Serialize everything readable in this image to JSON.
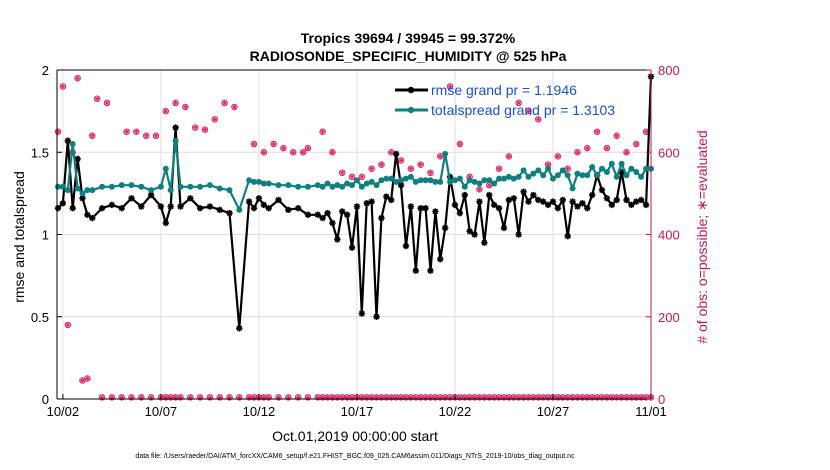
{
  "chart_data": {
    "type": "line",
    "title_line1": "Tropics 39694 / 39945 = 99.372%",
    "title_line2": "RADIOSONDE_SPECIFIC_HUMIDITY @ 525 hPa",
    "xlabel": "Oct.01,2019 00:00:00 start",
    "ylabel_left": "rmse and totalspread",
    "ylabel_right": "# of obs: o=possible; ∗=evaluated",
    "footer": "data file: /Users/raeder/DAI/ATM_forcXX/CAM6_setup/f.e21.FHIST_BGC.f09_025.CAM6assim.011/Diags_NTrS_2019-10/obs_diag_output.nc",
    "xlim": [
      1.7,
      32
    ],
    "ylim_left": [
      0,
      2
    ],
    "ylim_right": [
      0,
      800
    ],
    "x_ticks": [
      2,
      7,
      12,
      17,
      22,
      27,
      32
    ],
    "x_tick_labels": [
      "10/02",
      "10/07",
      "10/12",
      "10/17",
      "10/22",
      "10/27",
      "11/01"
    ],
    "y_left_ticks": [
      "0",
      "0.5",
      "1",
      "1.5",
      "2"
    ],
    "y_right_ticks": [
      "0",
      "200",
      "400",
      "600",
      "800"
    ],
    "colors": {
      "rmse": "#000000",
      "spread": "#0f8080",
      "obs": "#d81b60",
      "legend_text": "#1a4fd6",
      "right_axis": "#c2185b"
    },
    "series": [
      {
        "name": "rmse grand pr = 1.1946",
        "key": "rmse",
        "x": [
          1.75,
          2.0,
          2.25,
          2.5,
          2.75,
          3.0,
          3.25,
          3.5,
          4.0,
          4.5,
          5.0,
          5.5,
          6.0,
          6.5,
          7.0,
          7.25,
          7.5,
          7.75,
          8.0,
          8.5,
          9.0,
          9.5,
          10.0,
          10.5,
          11.0,
          11.5,
          11.75,
          12.0,
          12.25,
          12.5,
          13.0,
          13.5,
          14.0,
          14.5,
          15.0,
          15.25,
          15.5,
          15.75,
          16.0,
          16.25,
          16.5,
          16.75,
          17.0,
          17.25,
          17.5,
          17.75,
          18.0,
          18.25,
          18.5,
          18.75,
          19.0,
          19.25,
          19.5,
          19.75,
          20.0,
          20.25,
          20.5,
          20.75,
          21.0,
          21.25,
          21.5,
          21.75,
          22.0,
          22.25,
          22.5,
          22.75,
          23.0,
          23.25,
          23.5,
          23.75,
          24.0,
          24.25,
          24.5,
          24.75,
          25.0,
          25.25,
          25.5,
          25.75,
          26.0,
          26.25,
          26.5,
          26.75,
          27.0,
          27.25,
          27.5,
          27.75,
          28.0,
          28.25,
          28.5,
          28.75,
          29.0,
          29.25,
          29.5,
          29.75,
          30.0,
          30.25,
          30.5,
          30.75,
          31.0,
          31.25,
          31.5,
          31.75,
          32.0
        ],
        "y": [
          1.16,
          1.19,
          1.57,
          1.16,
          1.46,
          1.22,
          1.12,
          1.1,
          1.16,
          1.18,
          1.16,
          1.22,
          1.17,
          1.24,
          1.17,
          1.07,
          1.17,
          1.65,
          1.17,
          1.22,
          1.16,
          1.17,
          1.15,
          1.13,
          0.43,
          1.2,
          1.16,
          1.22,
          1.18,
          1.16,
          1.21,
          1.15,
          1.16,
          1.12,
          1.12,
          1.1,
          1.13,
          1.07,
          0.97,
          1.14,
          1.12,
          0.92,
          1.17,
          0.52,
          1.19,
          1.2,
          0.5,
          1.1,
          1.23,
          1.21,
          1.49,
          1.3,
          0.93,
          1.17,
          0.78,
          1.16,
          1.16,
          0.78,
          1.14,
          0.85,
          1.04,
          1.35,
          1.18,
          1.13,
          1.24,
          1.02,
          1.0,
          1.2,
          0.95,
          1.24,
          1.18,
          1.16,
          1.04,
          1.21,
          1.22,
          1.0,
          1.26,
          1.2,
          1.24,
          1.21,
          1.2,
          1.18,
          1.2,
          1.16,
          1.21,
          0.99,
          1.2,
          1.17,
          1.19,
          1.16,
          1.24,
          1.36,
          1.27,
          1.22,
          1.18,
          1.21,
          1.38,
          1.21,
          1.18,
          1.2,
          1.21,
          1.18,
          1.96
        ]
      },
      {
        "name": "totalspread grand pr = 1.3103",
        "key": "spread",
        "x": [
          1.75,
          2.0,
          2.25,
          2.5,
          2.75,
          3.0,
          3.25,
          3.5,
          4.0,
          4.5,
          5.0,
          5.5,
          6.0,
          6.5,
          7.0,
          7.25,
          7.5,
          7.75,
          8.0,
          8.5,
          9.0,
          9.5,
          10.0,
          10.5,
          11.0,
          11.5,
          11.75,
          12.0,
          12.25,
          12.5,
          13.0,
          13.5,
          14.0,
          14.5,
          15.0,
          15.25,
          15.5,
          15.75,
          16.0,
          16.25,
          16.5,
          16.75,
          17.0,
          17.25,
          17.5,
          17.75,
          18.0,
          18.25,
          18.5,
          18.75,
          19.0,
          19.25,
          19.5,
          19.75,
          20.0,
          20.25,
          20.5,
          20.75,
          21.0,
          21.25,
          21.5,
          21.75,
          22.0,
          22.25,
          22.5,
          22.75,
          23.0,
          23.25,
          23.5,
          23.75,
          24.0,
          24.25,
          24.5,
          24.75,
          25.0,
          25.25,
          25.5,
          25.75,
          26.0,
          26.25,
          26.5,
          26.75,
          27.0,
          27.25,
          27.5,
          27.75,
          28.0,
          28.25,
          28.5,
          28.75,
          29.0,
          29.25,
          29.5,
          29.75,
          30.0,
          30.25,
          30.5,
          30.75,
          31.0,
          31.25,
          31.5,
          31.75,
          32.0
        ],
        "y": [
          1.29,
          1.29,
          1.27,
          1.55,
          1.28,
          1.25,
          1.27,
          1.27,
          1.29,
          1.29,
          1.3,
          1.3,
          1.29,
          1.27,
          1.29,
          1.4,
          1.27,
          1.57,
          1.29,
          1.29,
          1.29,
          1.3,
          1.28,
          1.27,
          1.15,
          1.33,
          1.32,
          1.32,
          1.31,
          1.31,
          1.3,
          1.3,
          1.29,
          1.29,
          1.3,
          1.29,
          1.31,
          1.29,
          1.3,
          1.29,
          1.31,
          1.3,
          1.33,
          1.29,
          1.31,
          1.32,
          1.3,
          1.33,
          1.34,
          1.34,
          1.32,
          1.33,
          1.34,
          1.35,
          1.32,
          1.33,
          1.33,
          1.33,
          1.32,
          1.32,
          1.49,
          1.32,
          1.33,
          1.34,
          1.29,
          1.33,
          1.32,
          1.31,
          1.33,
          1.33,
          1.31,
          1.34,
          1.34,
          1.35,
          1.34,
          1.35,
          1.39,
          1.35,
          1.37,
          1.39,
          1.36,
          1.4,
          1.34,
          1.36,
          1.39,
          1.36,
          1.28,
          1.37,
          1.36,
          1.36,
          1.41,
          1.36,
          1.4,
          1.38,
          1.43,
          1.35,
          1.43,
          1.36,
          1.4,
          1.38,
          1.35,
          1.4,
          1.4
        ]
      }
    ],
    "obs_possible": {
      "x": [
        1.75,
        2.0,
        2.25,
        2.5,
        2.75,
        3.0,
        3.25,
        3.5,
        4.0,
        4.5,
        5.0,
        5.5,
        6.0,
        6.5,
        7.0,
        7.25,
        7.5,
        7.75,
        8.0,
        8.5,
        9.0,
        9.5,
        10.0,
        10.5,
        11.0,
        11.5,
        11.75,
        12.0,
        12.25,
        12.5,
        13.0,
        13.5,
        14.0,
        14.5,
        15.0,
        15.25,
        15.5,
        15.75,
        16.0,
        16.25,
        16.5,
        16.75,
        17.0,
        17.25,
        17.5,
        17.75,
        18.0,
        18.25,
        18.5,
        18.75,
        19.0,
        19.25,
        19.5,
        19.75,
        20.0,
        20.25,
        20.5,
        20.75,
        21.0,
        21.25,
        21.5,
        21.75,
        22.0,
        22.25,
        22.5,
        22.75,
        23.0,
        23.25,
        23.5,
        23.75,
        24.0,
        24.25,
        24.5,
        24.75,
        25.0,
        25.25,
        25.5,
        25.75,
        26.0,
        26.25,
        26.5,
        26.75,
        27.0,
        27.25,
        27.5,
        27.75,
        28.0,
        28.25,
        28.5,
        28.75,
        29.0,
        29.25,
        29.5,
        29.75,
        30.0,
        30.25,
        30.5,
        30.75,
        31.0,
        31.25,
        31.5,
        31.75,
        32.0
      ],
      "y": [
        650,
        760,
        180,
        600,
        780,
        45,
        50,
        640,
        4,
        4,
        4,
        4,
        4,
        4,
        4,
        4,
        4,
        4,
        4,
        4,
        4,
        4,
        4,
        4,
        4,
        4,
        4,
        4,
        4,
        4,
        4,
        4,
        4,
        4,
        4,
        4,
        4,
        4,
        4,
        4,
        4,
        4,
        4,
        4,
        4,
        4,
        4,
        4,
        4,
        4,
        4,
        4,
        4,
        4,
        4,
        4,
        4,
        4,
        4,
        4,
        4,
        4,
        4,
        4,
        4,
        4,
        4,
        4,
        4,
        4,
        4,
        4,
        4,
        4,
        4,
        4,
        4,
        4,
        4,
        4,
        4,
        4,
        4,
        4,
        4,
        4,
        4,
        4,
        4,
        4,
        4,
        4,
        4,
        4,
        4,
        4,
        4,
        4,
        4,
        4,
        4,
        4,
        4
      ]
    }
  }
}
